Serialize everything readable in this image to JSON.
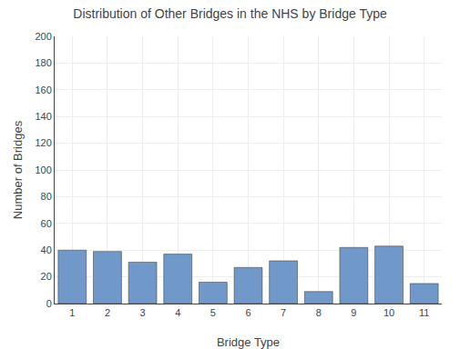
{
  "chart_data": {
    "type": "bar",
    "title": "Distribution of Other Bridges in the NHS by Bridge Type",
    "xlabel": "Bridge Type",
    "ylabel": "Number of Bridges",
    "categories": [
      "1",
      "2",
      "3",
      "4",
      "5",
      "6",
      "7",
      "8",
      "9",
      "10",
      "11"
    ],
    "values": [
      40,
      39,
      31,
      37,
      16,
      27,
      32,
      9,
      42,
      43,
      15
    ],
    "color": "#7098c8",
    "ylim": [
      0,
      200
    ],
    "yticks": [
      0,
      20,
      40,
      60,
      80,
      100,
      120,
      140,
      160,
      180,
      200
    ],
    "grid": true
  }
}
